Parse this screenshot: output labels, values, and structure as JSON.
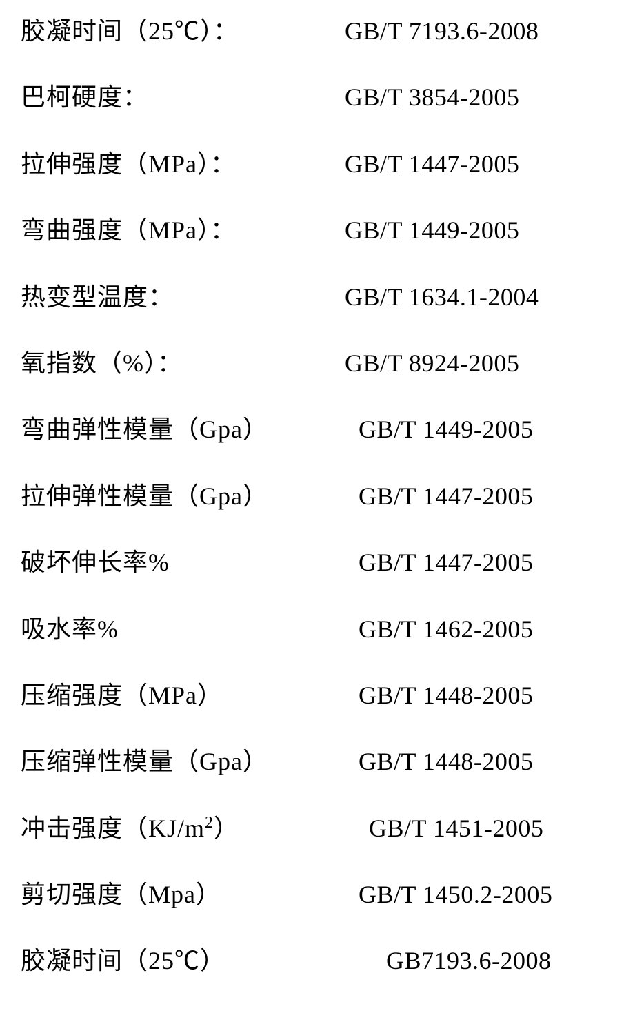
{
  "rows": [
    {
      "label": "胶凝时间（25℃）：",
      "value": "GB/T 7193.6-2008",
      "labelIndent": 0,
      "valueIndent": 0
    },
    {
      "label": "巴柯硬度：",
      "value": "GB/T 3854-2005",
      "labelIndent": 0,
      "valueIndent": 0
    },
    {
      "label": "拉伸强度（MPa）：",
      "value": "GB/T 1447-2005",
      "labelIndent": 0,
      "valueIndent": 0
    },
    {
      "label": "弯曲强度（MPa）：",
      "value": "GB/T 1449-2005",
      "labelIndent": 0,
      "valueIndent": 0
    },
    {
      "label": "热变型温度：",
      "value": "GB/T 1634.1-2004",
      "labelIndent": 0,
      "valueIndent": 0
    },
    {
      "label": "氧指数（%）：",
      "value": "GB/T 8924-2005",
      "labelIndent": 0,
      "valueIndent": 0
    },
    {
      "label": "弯曲弹性模量（Gpa）",
      "value": "GB/T 1449-2005",
      "labelIndent": 0,
      "valueIndent": 20
    },
    {
      "label": "拉伸弹性模量（Gpa）",
      "value": "GB/T 1447-2005",
      "labelIndent": 0,
      "valueIndent": 20
    },
    {
      "label": "破坏伸长率%",
      "value": "GB/T 1447-2005",
      "labelIndent": 0,
      "valueIndent": 20
    },
    {
      "label": "吸水率%",
      "value": "GB/T 1462-2005",
      "labelIndent": 0,
      "valueIndent": 20
    },
    {
      "label": "压缩强度（MPa）",
      "value": "GB/T 1448-2005",
      "labelIndent": 0,
      "valueIndent": 20
    },
    {
      "label": "压缩弹性模量（Gpa）",
      "value": "GB/T 1448-2005",
      "labelIndent": 0,
      "valueIndent": 20
    },
    {
      "label": "冲击强度（KJ/m²）",
      "value": "GB/T 1451-2005",
      "labelIndent": 0,
      "valueIndent": 35,
      "hasSup": true,
      "labelBase": "冲击强度（KJ/m",
      "labelSup": "2",
      "labelEnd": "）"
    },
    {
      "label": "剪切强度（Mpa）",
      "value": "GB/T 1450.2-2005",
      "labelIndent": 0,
      "valueIndent": 20
    },
    {
      "label": "胶凝时间（25℃）",
      "value": "GB7193.6-2008",
      "labelIndent": 0,
      "valueIndent": 60
    }
  ],
  "style": {
    "fontSize": 36,
    "textColor": "#000000",
    "backgroundColor": "#ffffff",
    "rowSpacing": 46
  }
}
